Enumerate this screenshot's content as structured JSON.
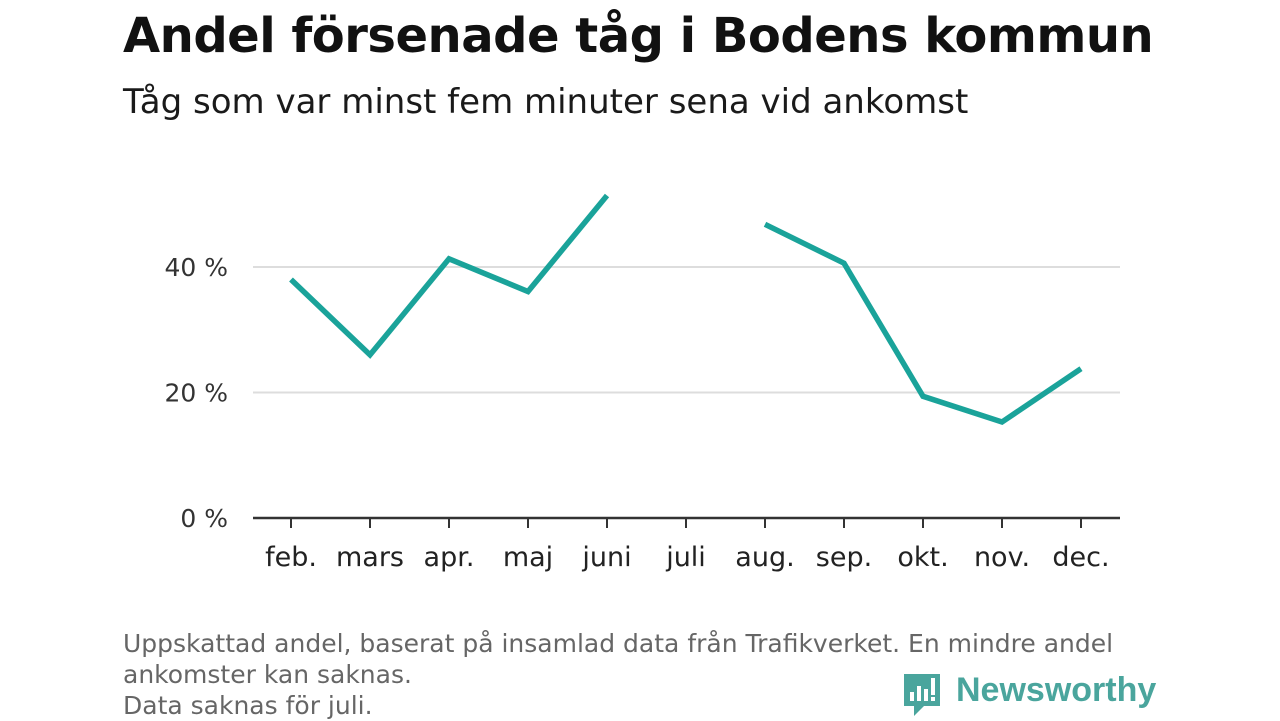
{
  "title": "Andel försenade tåg i Bodens kommun",
  "subtitle": "Tåg som var minst fem minuter sena vid ankomst",
  "footer": {
    "line1": "Uppskattad andel, baserat på insamlad data från Trafikverket. En mindre andel",
    "line2": "ankomster kan saknas.",
    "line3": "Data saknas för juli."
  },
  "logo": {
    "text": "Newsworthy",
    "color": "#4aa59d"
  },
  "chart_data": {
    "type": "line",
    "categories": [
      "feb.",
      "mars",
      "apr.",
      "maj",
      "juni",
      "juli",
      "aug.",
      "sep.",
      "okt.",
      "nov.",
      "dec."
    ],
    "series": [
      {
        "values": [
          38,
          26,
          41.3,
          36.1,
          51.4,
          null,
          46.8,
          40.6,
          19.4,
          15.3,
          23.8
        ]
      }
    ],
    "y_ticks": [
      0,
      20,
      40
    ],
    "y_tick_labels": [
      "0 %",
      "20 %",
      "40 %"
    ],
    "ylim": [
      0,
      55
    ],
    "grid": true,
    "line_color": "#1aa39a",
    "grid_color": "#dddddd",
    "axis_color": "#333333"
  }
}
